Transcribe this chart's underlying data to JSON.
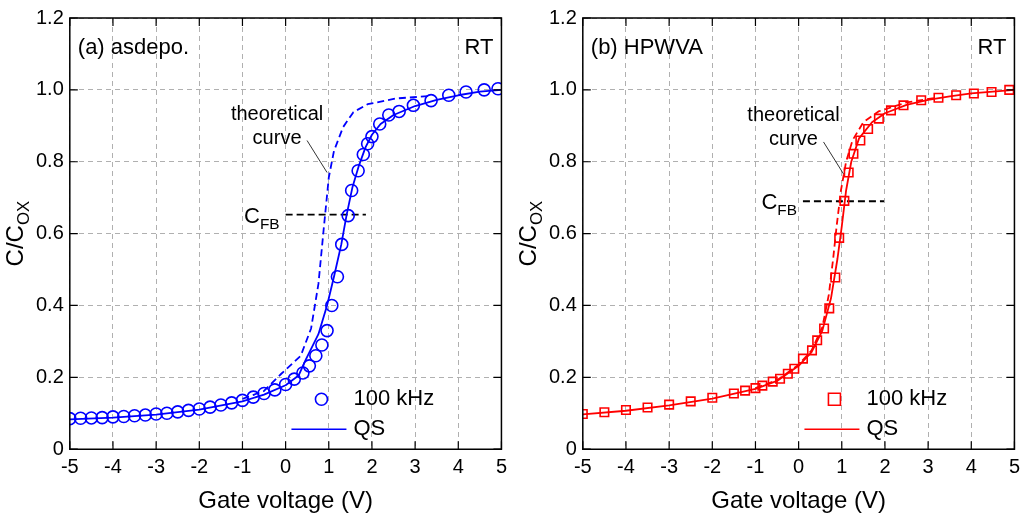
{
  "chart_data": [
    {
      "type": "scatter",
      "xlabel": "Gate voltage (V)",
      "ylabel": "C/C$_{OX}$",
      "xlim": [
        -5,
        5
      ],
      "ylim": [
        0,
        1.2
      ],
      "xticks": [
        -5,
        -4,
        -3,
        -2,
        -1,
        0,
        1,
        2,
        3,
        4,
        5
      ],
      "yticks": [
        0,
        0.2,
        0.4,
        0.6,
        0.8,
        {
          "value": 1,
          "label": "1.0"
        },
        1.2
      ],
      "grid": true,
      "legend": "bottom right",
      "annotations": [
        "(a) asdepo.",
        "RT",
        {
          "text": "theoretical curve",
          "x": 0.96,
          "y": 0.77
        },
        {
          "text": "C$_{FB}$",
          "x": 0.0,
          "y": 0.653
        }
      ],
      "series": [
        {
          "name": "100 kHz",
          "marker": "circle",
          "color": "#0000ff",
          "x": [
            -5,
            -4.75,
            -4.5,
            -4.25,
            -4,
            -3.75,
            -3.5,
            -3.25,
            -3,
            -2.75,
            -2.5,
            -2.25,
            -2,
            -1.75,
            -1.5,
            -1.25,
            -1,
            -0.75,
            -0.5,
            -0.25,
            0,
            0.2,
            0.4,
            0.55,
            0.7,
            0.84,
            0.96,
            1.07,
            1.2,
            1.3,
            1.45,
            1.53,
            1.68,
            1.8,
            1.9,
            2.0,
            2.18,
            2.39,
            2.63,
            2.96,
            3.37,
            3.78,
            4.18,
            4.6,
            4.92
          ],
          "values": [
            0.085,
            0.086,
            0.087,
            0.088,
            0.09,
            0.091,
            0.093,
            0.095,
            0.098,
            0.1,
            0.104,
            0.108,
            0.112,
            0.117,
            0.123,
            0.129,
            0.136,
            0.145,
            0.155,
            0.165,
            0.18,
            0.195,
            0.212,
            0.232,
            0.26,
            0.29,
            0.33,
            0.4,
            0.48,
            0.57,
            0.65,
            0.72,
            0.775,
            0.82,
            0.85,
            0.87,
            0.905,
            0.93,
            0.94,
            0.957,
            0.97,
            0.985,
            0.994,
            1.0,
            1.003
          ]
        },
        {
          "name": "QS",
          "type": "line",
          "line_style": "solid",
          "color": "#0000ff",
          "x": [
            -5,
            -4,
            -3,
            -2,
            -1,
            -0.5,
            0,
            0.3,
            0.47,
            0.76,
            0.96,
            1.12,
            1.29,
            1.41,
            1.55,
            1.7,
            1.85,
            2.0,
            2.2,
            2.5,
            3,
            3.5,
            4,
            4.5,
            5
          ],
          "values": [
            0.083,
            0.088,
            0.096,
            0.11,
            0.133,
            0.152,
            0.178,
            0.205,
            0.25,
            0.32,
            0.4,
            0.48,
            0.57,
            0.65,
            0.73,
            0.79,
            0.84,
            0.875,
            0.905,
            0.93,
            0.955,
            0.972,
            0.985,
            0.995,
            1.0
          ]
        },
        {
          "type": "line",
          "line_style": "dashed",
          "color": "#0000ff",
          "x": [
            -1,
            -0.5,
            -0.1,
            0.35,
            0.59,
            0.76,
            0.88,
            1.0,
            1.12,
            1.33,
            1.57,
            1.9,
            2.55,
            3.37
          ],
          "values": [
            0.14,
            0.162,
            0.21,
            0.26,
            0.336,
            0.46,
            0.61,
            0.756,
            0.83,
            0.896,
            0.938,
            0.96,
            0.976,
            0.983
          ]
        },
        {
          "type": "line",
          "line_style": "dashed",
          "color": "#000000",
          "x": [
            0.0,
            1.86
          ],
          "values": [
            0.653,
            0.653
          ]
        }
      ]
    },
    {
      "type": "scatter",
      "xlabel": "Gate voltage (V)",
      "ylabel": "C/C$_{OX}$",
      "xlim": [
        -5,
        5
      ],
      "ylim": [
        0,
        1.2
      ],
      "xticks": [
        -5,
        -4,
        -3,
        -2,
        -1,
        0,
        1,
        2,
        3,
        4,
        5
      ],
      "yticks": [
        0,
        0.2,
        0.4,
        0.6,
        0.8,
        {
          "value": 1,
          "label": "1.0"
        },
        1.2
      ],
      "grid": true,
      "legend": "bottom right",
      "annotations": [
        "(b) HPWVA",
        "RT",
        {
          "text": "theoretical curve",
          "x": 1.04,
          "y": 0.766
        },
        {
          "text": "C$_{FB}$",
          "x": 0.1,
          "y": 0.69
        }
      ],
      "series": [
        {
          "name": "100 kHz",
          "marker": "square",
          "color": "#ff0000",
          "x": [
            -5,
            -4.5,
            -4,
            -3.5,
            -3,
            -2.5,
            -2,
            -1.5,
            -1.24,
            -1,
            -0.84,
            -0.6,
            -0.43,
            -0.25,
            -0.1,
            0.1,
            0.31,
            0.43,
            0.59,
            0.71,
            0.85,
            0.94,
            1.06,
            1.16,
            1.27,
            1.43,
            1.61,
            1.86,
            2.14,
            2.43,
            2.84,
            3.24,
            3.65,
            4.06,
            4.47,
            4.88
          ],
          "values": [
            0.098,
            0.103,
            0.109,
            0.116,
            0.124,
            0.133,
            0.143,
            0.155,
            0.163,
            0.17,
            0.177,
            0.188,
            0.196,
            0.21,
            0.224,
            0.252,
            0.275,
            0.303,
            0.336,
            0.392,
            0.478,
            0.588,
            0.691,
            0.77,
            0.822,
            0.859,
            0.891,
            0.92,
            0.943,
            0.957,
            0.971,
            0.978,
            0.985,
            0.99,
            0.994,
            1.0
          ]
        },
        {
          "name": "QS",
          "type": "line",
          "line_style": "solid",
          "color": "#ff0000",
          "x": [
            -5,
            -4,
            -3,
            -2,
            -1,
            -0.5,
            0,
            0.3,
            0.55,
            0.75,
            0.9,
            1.0,
            1.1,
            1.22,
            1.4,
            1.7,
            2.0,
            2.5,
            3,
            3.5,
            4,
            4.5,
            5
          ],
          "values": [
            0.097,
            0.107,
            0.122,
            0.141,
            0.168,
            0.19,
            0.232,
            0.27,
            0.33,
            0.42,
            0.53,
            0.62,
            0.72,
            0.8,
            0.865,
            0.91,
            0.935,
            0.958,
            0.972,
            0.982,
            0.99,
            0.995,
            1.0
          ]
        },
        {
          "type": "line",
          "line_style": "dashed",
          "color": "#ff0000",
          "x": [
            -1,
            -0.5,
            0,
            0.3,
            0.55,
            0.7,
            0.8,
            0.88,
            0.98,
            1.1,
            1.25,
            1.5,
            1.85,
            2.5,
            3.2
          ],
          "values": [
            0.17,
            0.192,
            0.235,
            0.275,
            0.34,
            0.43,
            0.53,
            0.62,
            0.72,
            0.8,
            0.86,
            0.91,
            0.94,
            0.965,
            0.978
          ]
        },
        {
          "type": "line",
          "line_style": "dashed",
          "color": "#000000",
          "x": [
            0.1,
            1.98
          ],
          "values": [
            0.69,
            0.69
          ]
        }
      ]
    }
  ]
}
